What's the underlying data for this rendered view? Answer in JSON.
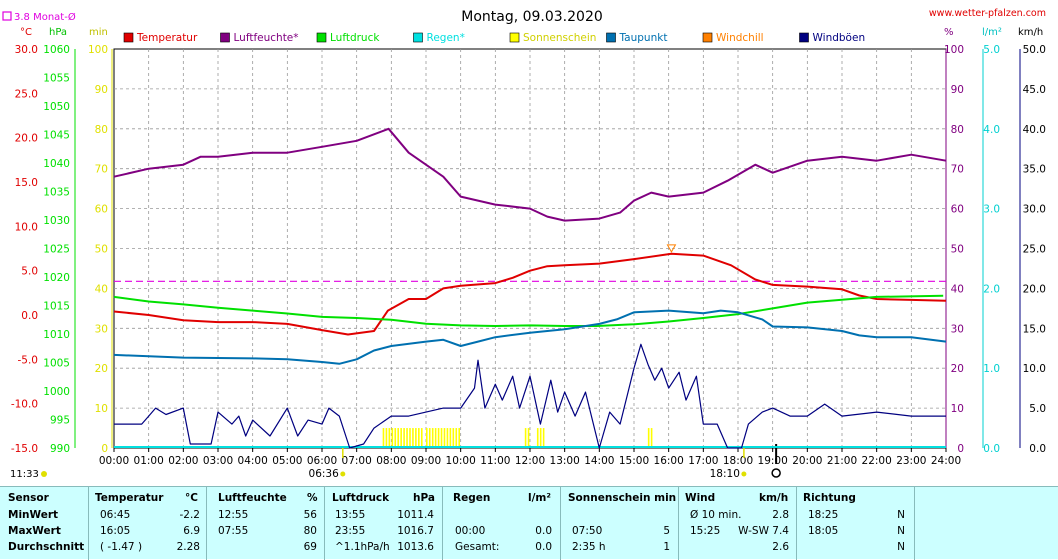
{
  "header": {
    "title": "Montag, 09.03.2020",
    "site": "www.wetter-pfalzen.com",
    "month_avg": "3.8 Monat-Ø",
    "units_left": [
      "°C",
      "hPa",
      "min"
    ],
    "units_right": [
      "%",
      "l/m²",
      "km/h"
    ],
    "legend": [
      {
        "label": "Temperatur",
        "color": "#e00000"
      },
      {
        "label": "Luftfeuchte*",
        "color": "#800080"
      },
      {
        "label": "Luftdruck",
        "color": "#00e000"
      },
      {
        "label": "Regen*",
        "color": "#00e0e0"
      },
      {
        "label": "Sonnenschein",
        "color": "#ffff00"
      },
      {
        "label": "Taupunkt",
        "color": "#0070b0"
      },
      {
        "label": "Windchill",
        "color": "#ff8000"
      },
      {
        "label": "Windböen",
        "color": "#000080"
      }
    ]
  },
  "chart_data": {
    "type": "line",
    "title": "Montag, 09.03.2020",
    "x_ticks": [
      "00:00",
      "01:00",
      "02:00",
      "03:00",
      "04:00",
      "05:00",
      "06:00",
      "07:00",
      "08:00",
      "09:00",
      "10:00",
      "11:00",
      "12:00",
      "13:00",
      "14:00",
      "15:00",
      "16:00",
      "17:00",
      "18:00",
      "19:00",
      "20:00",
      "21:00",
      "22:00",
      "23:00",
      "24:00"
    ],
    "x_markers": [
      {
        "label": "06:36",
        "hour": 6.6,
        "meaning": "sunrise"
      },
      {
        "label": "18:10",
        "hour": 18.17,
        "meaning": "sunset"
      }
    ],
    "now_label": "11:33",
    "axes": {
      "temperature": {
        "unit": "°C",
        "range": [
          -15,
          30
        ],
        "ticks": [
          "30.0",
          "25.0",
          "20.0",
          "15.0",
          "10.0",
          "5.0",
          "0.0",
          "-5.0",
          "-10.0",
          "-15.0"
        ],
        "color": "#e00000"
      },
      "pressure": {
        "unit": "hPa",
        "range": [
          990,
          1060
        ],
        "ticks": [
          "1060",
          "1055",
          "1050",
          "1045",
          "1040",
          "1035",
          "1030",
          "1025",
          "1020",
          "1015",
          "1010",
          "1005",
          "1000",
          "995",
          "990"
        ],
        "color": "#00e000"
      },
      "sunshine": {
        "unit": "min",
        "range": [
          0,
          100
        ],
        "ticks": [
          "100",
          "90",
          "80",
          "70",
          "60",
          "50",
          "40",
          "30",
          "20",
          "10",
          "0"
        ],
        "color": "#e0e000"
      },
      "humidity": {
        "unit": "%",
        "range": [
          0,
          100
        ],
        "ticks": [
          "100",
          "90",
          "80",
          "70",
          "60",
          "50",
          "40",
          "30",
          "20",
          "10",
          "0"
        ],
        "color": "#800080"
      },
      "rain": {
        "unit": "l/m²",
        "range": [
          0,
          5
        ],
        "ticks": [
          "5.0",
          "4.0",
          "3.0",
          "2.0",
          "1.0",
          "0.0"
        ],
        "color": "#00d0d0"
      },
      "wind": {
        "unit": "km/h",
        "range": [
          0,
          50
        ],
        "ticks": [
          "50.0",
          "45.0",
          "40.0",
          "35.0",
          "30.0",
          "25.0",
          "20.0",
          "15.0",
          "10.0",
          "5.0",
          "0.0"
        ],
        "color": "#000000"
      }
    },
    "month_avg_temperature": 3.8,
    "series": [
      {
        "name": "Temperatur",
        "axis": "temperature",
        "color": "#e00000",
        "points": [
          [
            0,
            0.4
          ],
          [
            1,
            0.0
          ],
          [
            2,
            -0.6
          ],
          [
            3,
            -0.8
          ],
          [
            4,
            -0.8
          ],
          [
            5,
            -1.0
          ],
          [
            6,
            -1.7
          ],
          [
            6.75,
            -2.2
          ],
          [
            7.5,
            -1.8
          ],
          [
            7.9,
            0.5
          ],
          [
            8.5,
            1.8
          ],
          [
            9.0,
            1.8
          ],
          [
            9.5,
            3.0
          ],
          [
            10.0,
            3.3
          ],
          [
            11,
            3.6
          ],
          [
            11.5,
            4.2
          ],
          [
            12,
            5.0
          ],
          [
            12.5,
            5.5
          ],
          [
            13,
            5.6
          ],
          [
            14,
            5.8
          ],
          [
            15,
            6.3
          ],
          [
            16.08,
            6.9
          ],
          [
            17,
            6.7
          ],
          [
            17.8,
            5.6
          ],
          [
            18.5,
            4.0
          ],
          [
            19,
            3.4
          ],
          [
            20,
            3.2
          ],
          [
            21,
            2.9
          ],
          [
            21.5,
            2.2
          ],
          [
            22,
            1.8
          ],
          [
            23,
            1.7
          ],
          [
            24,
            1.6
          ]
        ]
      },
      {
        "name": "Luftfeuchte*",
        "axis": "humidity",
        "color": "#800080",
        "points": [
          [
            0,
            68
          ],
          [
            1,
            70
          ],
          [
            2,
            71
          ],
          [
            2.5,
            73
          ],
          [
            3,
            73
          ],
          [
            4,
            74
          ],
          [
            5,
            74
          ],
          [
            6,
            75.5
          ],
          [
            7,
            77
          ],
          [
            7.92,
            80
          ],
          [
            8.5,
            74
          ],
          [
            9.5,
            68
          ],
          [
            10,
            63
          ],
          [
            11,
            61
          ],
          [
            12,
            60
          ],
          [
            12.5,
            58
          ],
          [
            13,
            57
          ],
          [
            14,
            57.5
          ],
          [
            14.6,
            59
          ],
          [
            15,
            62
          ],
          [
            15.5,
            64
          ],
          [
            16,
            63
          ],
          [
            17,
            64
          ],
          [
            17.7,
            67
          ],
          [
            18.5,
            71
          ],
          [
            19,
            69
          ],
          [
            20,
            72
          ],
          [
            21,
            73
          ],
          [
            22,
            72
          ],
          [
            23,
            73.5
          ],
          [
            24,
            72
          ]
        ]
      },
      {
        "name": "Luftdruck",
        "axis": "pressure",
        "color": "#00e000",
        "points": [
          [
            0,
            1016.5
          ],
          [
            1,
            1015.7
          ],
          [
            2,
            1015.2
          ],
          [
            3,
            1014.6
          ],
          [
            4,
            1014.1
          ],
          [
            5,
            1013.6
          ],
          [
            6,
            1013.0
          ],
          [
            7,
            1012.8
          ],
          [
            8,
            1012.5
          ],
          [
            9,
            1011.8
          ],
          [
            10,
            1011.5
          ],
          [
            11,
            1011.4
          ],
          [
            12,
            1011.5
          ],
          [
            13,
            1011.4
          ],
          [
            13.92,
            1011.4
          ],
          [
            15,
            1011.7
          ],
          [
            16,
            1012.2
          ],
          [
            17,
            1012.8
          ],
          [
            18,
            1013.5
          ],
          [
            19,
            1014.5
          ],
          [
            20,
            1015.5
          ],
          [
            21,
            1016.0
          ],
          [
            22,
            1016.5
          ],
          [
            23.92,
            1016.7
          ]
        ]
      },
      {
        "name": "Taupunkt",
        "axis": "temperature",
        "color": "#0070b0",
        "points": [
          [
            0,
            -4.5
          ],
          [
            2,
            -4.8
          ],
          [
            4,
            -4.9
          ],
          [
            5,
            -5.0
          ],
          [
            6,
            -5.3
          ],
          [
            6.5,
            -5.5
          ],
          [
            7,
            -5.0
          ],
          [
            7.5,
            -4.0
          ],
          [
            8,
            -3.5
          ],
          [
            9,
            -3.0
          ],
          [
            9.5,
            -2.8
          ],
          [
            10,
            -3.5
          ],
          [
            10.5,
            -3.0
          ],
          [
            11,
            -2.5
          ],
          [
            12,
            -2.0
          ],
          [
            13,
            -1.6
          ],
          [
            14,
            -1.0
          ],
          [
            14.5,
            -0.5
          ],
          [
            15,
            0.3
          ],
          [
            16,
            0.5
          ],
          [
            17,
            0.2
          ],
          [
            17.5,
            0.5
          ],
          [
            18,
            0.3
          ],
          [
            18.7,
            -0.5
          ],
          [
            19,
            -1.3
          ],
          [
            20,
            -1.4
          ],
          [
            21,
            -1.8
          ],
          [
            21.5,
            -2.3
          ],
          [
            22,
            -2.5
          ],
          [
            23,
            -2.5
          ],
          [
            24,
            -3.0
          ]
        ]
      },
      {
        "name": "Windböen",
        "axis": "wind",
        "color": "#000080",
        "points": [
          [
            0,
            3.0
          ],
          [
            0.8,
            3.0
          ],
          [
            1.0,
            4.0
          ],
          [
            1.2,
            5.0
          ],
          [
            1.5,
            4.2
          ],
          [
            2.0,
            5.0
          ],
          [
            2.2,
            0.5
          ],
          [
            2.8,
            0.5
          ],
          [
            3.0,
            4.5
          ],
          [
            3.4,
            3.0
          ],
          [
            3.6,
            4.0
          ],
          [
            3.8,
            1.5
          ],
          [
            4.0,
            3.5
          ],
          [
            4.5,
            1.5
          ],
          [
            5.0,
            5.0
          ],
          [
            5.3,
            1.5
          ],
          [
            5.6,
            3.5
          ],
          [
            6.0,
            3.0
          ],
          [
            6.2,
            5.0
          ],
          [
            6.5,
            4.0
          ],
          [
            6.8,
            0.0
          ],
          [
            7.2,
            0.5
          ],
          [
            7.5,
            2.5
          ],
          [
            8.0,
            4.0
          ],
          [
            8.5,
            4.0
          ],
          [
            9.0,
            4.5
          ],
          [
            9.5,
            5.0
          ],
          [
            10,
            5.0
          ],
          [
            10.4,
            7.5
          ],
          [
            10.5,
            11.0
          ],
          [
            10.7,
            5.0
          ],
          [
            11.0,
            8.0
          ],
          [
            11.2,
            6.0
          ],
          [
            11.5,
            9.0
          ],
          [
            11.7,
            5.0
          ],
          [
            12.0,
            9.0
          ],
          [
            12.3,
            3.0
          ],
          [
            12.6,
            8.5
          ],
          [
            12.8,
            4.5
          ],
          [
            13.0,
            7.0
          ],
          [
            13.3,
            4.0
          ],
          [
            13.6,
            7.0
          ],
          [
            14.0,
            0.0
          ],
          [
            14.3,
            4.5
          ],
          [
            14.6,
            3.0
          ],
          [
            15.0,
            10.0
          ],
          [
            15.2,
            13.0
          ],
          [
            15.4,
            10.5
          ],
          [
            15.6,
            8.5
          ],
          [
            15.8,
            10.0
          ],
          [
            16.0,
            7.5
          ],
          [
            16.3,
            9.5
          ],
          [
            16.5,
            6.0
          ],
          [
            16.8,
            9.0
          ],
          [
            17.0,
            3.0
          ],
          [
            17.4,
            3.0
          ],
          [
            17.7,
            0.0
          ],
          [
            18.1,
            0.0
          ],
          [
            18.3,
            3.0
          ],
          [
            18.7,
            4.5
          ],
          [
            19.0,
            5.0
          ],
          [
            19.5,
            4.0
          ],
          [
            20.0,
            4.0
          ],
          [
            20.5,
            5.5
          ],
          [
            21,
            4.0
          ],
          [
            22,
            4.5
          ],
          [
            23,
            4.0
          ],
          [
            24,
            4.0
          ]
        ]
      }
    ],
    "sunshine_bars": {
      "axis": "sunshine",
      "color": "#ffff00",
      "intervals": [
        [
          7.75,
          8.9,
          5
        ],
        [
          9.0,
          10.0,
          5
        ],
        [
          11.85,
          12.0,
          5
        ],
        [
          12.2,
          12.45,
          5
        ],
        [
          15.4,
          15.5,
          5
        ]
      ]
    },
    "rain_total": 0.0
  },
  "summary": {
    "headers": {
      "sensor": "Sensor",
      "temp": "Temperatur",
      "temp_u": "°C",
      "hum": "Luftfeuchte",
      "hum_u": "%",
      "press": "Luftdruck",
      "press_u": "hPa",
      "rain": "Regen",
      "rain_u": "l/m²",
      "sun": "Sonnenschein min",
      "wind": "Wind",
      "wind_u": "km/h",
      "dir": "Richtung"
    },
    "rows": [
      {
        "label": "MinWert",
        "temp_t": "06:45",
        "temp_v": "-2.2",
        "hum_t": "12:55",
        "hum_v": "56",
        "press_t": "13:55",
        "press_v": "1011.4",
        "rain_t": "",
        "rain_v": "",
        "sun_t": "",
        "sun_v": "",
        "wind_t": "Ø 10 min.",
        "wind_v": "2.8",
        "dir_t": "18:25",
        "dir_v": "N"
      },
      {
        "label": "MaxWert",
        "temp_t": "16:05",
        "temp_v": "6.9",
        "hum_t": "07:55",
        "hum_v": "80",
        "press_t": "23:55",
        "press_v": "1016.7",
        "rain_t": "00:00",
        "rain_v": "0.0",
        "sun_t": "07:50",
        "sun_v": "5",
        "wind_t": "15:25",
        "wind_v": "W-SW 7.4",
        "dir_t": "18:05",
        "dir_v": "N"
      },
      {
        "label": "Durchschnitt",
        "temp_t": "( -1.47 )",
        "temp_v": "2.28",
        "hum_t": "",
        "hum_v": "69",
        "press_t": "^1.1hPa/h",
        "press_v": "1013.6",
        "rain_t": "Gesamt:",
        "rain_v": "0.0",
        "sun_t": "2:35 h",
        "sun_v": "1",
        "wind_t": "",
        "wind_v": "2.6",
        "dir_t": "",
        "dir_v": "N"
      }
    ]
  }
}
